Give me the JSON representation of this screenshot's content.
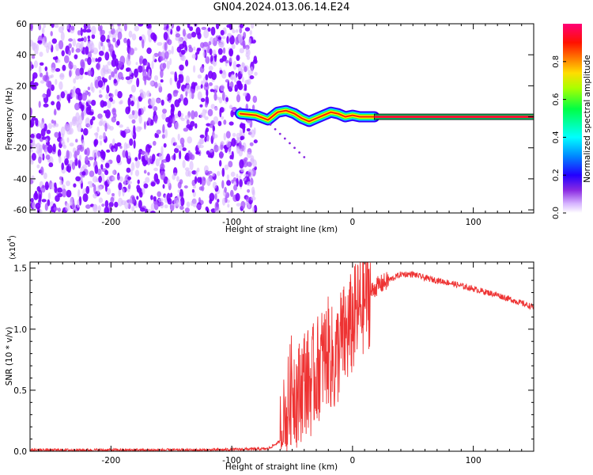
{
  "title": "GN04.2024.013.06.14.E24",
  "chart_data": [
    {
      "type": "heatmap",
      "xlabel": "Height of straight line (km)",
      "ylabel": "Frequency (Hz)",
      "xlim": [
        -267,
        150
      ],
      "ylim": [
        -62,
        60
      ],
      "xticks": [
        -200,
        -100,
        0,
        100
      ],
      "xtick_labels": [
        "-200",
        "-100",
        "0",
        "100"
      ],
      "yticks": [
        -60,
        -40,
        -20,
        0,
        20,
        40,
        60
      ],
      "ytick_labels": [
        "-60",
        "-40",
        "-20",
        "0",
        "20",
        "40",
        "60"
      ],
      "colorbar": {
        "label": "Normalized spectral amplitude",
        "range": [
          0,
          1
        ],
        "ticks": [
          0.0,
          0.2,
          0.4,
          0.6,
          0.8
        ],
        "tick_labels": [
          "0.0",
          "0.2",
          "0.4",
          "0.6",
          "0.8"
        ],
        "colormap": "hsv-like: white, purple, blue, cyan, green, yellow, orange, red, magenta"
      },
      "noise_region_x": [
        -267,
        -80
      ],
      "noise_region_amplitude": 0.2,
      "signal_trace": {
        "x": [
          -93,
          -80,
          -70,
          -62,
          -55,
          -48,
          -42,
          -36,
          -30,
          -24,
          -18,
          -12,
          -6,
          0,
          6,
          12,
          18
        ],
        "freq_hz": [
          2,
          1,
          -2,
          3,
          4,
          2,
          -1,
          -3,
          -1,
          1,
          3,
          2,
          0,
          1,
          0,
          0,
          0
        ]
      },
      "steady_line": {
        "x": [
          18,
          150
        ],
        "freq_hz": 0,
        "amplitude": 1.0
      }
    },
    {
      "type": "line",
      "xlabel": "Height of straight line (km)",
      "ylabel": "SNR (10 * v/v)",
      "y_multiplier_label": "(x10",
      "y_multiplier_exponent": "4",
      "y_multiplier_close": ")",
      "xlim": [
        -267,
        150
      ],
      "ylim": [
        0,
        1.55
      ],
      "xticks": [
        -200,
        -100,
        0,
        100
      ],
      "xtick_labels": [
        "-200",
        "-100",
        "0",
        "100"
      ],
      "yticks": [
        0.0,
        0.5,
        1.0,
        1.5
      ],
      "ytick_labels": [
        "0.0",
        "0.5",
        "1.0",
        "1.5"
      ],
      "series": [
        {
          "color": "#ee3333",
          "x": [
            -267,
            -200,
            -120,
            -70,
            -60,
            -55,
            -50,
            -45,
            -40,
            -35,
            -30,
            -25,
            -20,
            -15,
            -10,
            -5,
            0,
            5,
            10,
            20,
            30,
            40,
            50,
            60,
            80,
            100,
            120,
            150
          ],
          "y": [
            0.01,
            0.01,
            0.01,
            0.02,
            0.08,
            0.25,
            0.55,
            0.45,
            0.6,
            0.55,
            0.65,
            0.75,
            0.82,
            0.7,
            0.9,
            0.95,
            1.05,
            1.15,
            1.25,
            1.35,
            1.4,
            1.45,
            1.45,
            1.42,
            1.38,
            1.33,
            1.28,
            1.18
          ]
        }
      ]
    }
  ]
}
